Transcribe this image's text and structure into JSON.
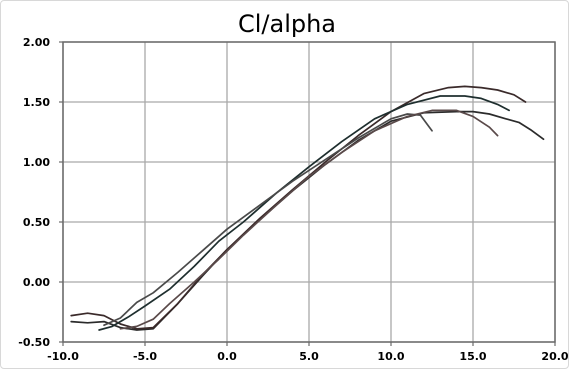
{
  "chart_data": {
    "type": "line",
    "title": "Cl/alpha",
    "xlabel": "",
    "ylabel": "",
    "xlim": [
      -10,
      20
    ],
    "ylim": [
      -0.5,
      2.0
    ],
    "x_ticks": [
      "-10.0",
      "-5.0",
      "0.0",
      "5.0",
      "10.0",
      "15.0",
      "20.0"
    ],
    "y_ticks": [
      "2.00",
      "1.50",
      "1.00",
      "0.50",
      "0.00",
      "-0.50"
    ],
    "grid": true,
    "legend": "none",
    "line_colors": [
      "#2b2b2b",
      "#3a2a2a",
      "#1e2e2e",
      "#4a4a4a",
      "#5a4a4a"
    ],
    "series": [
      {
        "x": [
          -9.5,
          -8.5,
          -7.5,
          -6.5,
          -5.5,
          -4.5,
          -3.0,
          -1.5,
          0,
          2,
          4,
          6,
          8,
          10,
          12,
          14,
          15,
          16,
          17,
          17.8,
          18.5,
          19.3
        ],
        "y": [
          -0.33,
          -0.34,
          -0.33,
          -0.38,
          -0.4,
          -0.39,
          -0.18,
          0.05,
          0.27,
          0.52,
          0.76,
          0.98,
          1.18,
          1.34,
          1.41,
          1.42,
          1.42,
          1.4,
          1.36,
          1.33,
          1.27,
          1.19
        ]
      },
      {
        "x": [
          -9.5,
          -8.5,
          -7.5,
          -6.5,
          -5.5,
          -4.5,
          -3.0,
          -1.5,
          0,
          2,
          4,
          6,
          8,
          10,
          12,
          13.5,
          14.5,
          15.5,
          16.5,
          17.5,
          18.2
        ],
        "y": [
          -0.28,
          -0.26,
          -0.28,
          -0.35,
          -0.39,
          -0.38,
          -0.18,
          0.06,
          0.27,
          0.53,
          0.77,
          1.0,
          1.22,
          1.42,
          1.57,
          1.62,
          1.63,
          1.62,
          1.6,
          1.56,
          1.5
        ]
      },
      {
        "x": [
          -7.8,
          -7.0,
          -6.0,
          -5.0,
          -3.5,
          -2.0,
          -0.5,
          1,
          3,
          5,
          7,
          9,
          11,
          13,
          14.5,
          15.5,
          16.5,
          17.2
        ],
        "y": [
          -0.4,
          -0.37,
          -0.29,
          -0.2,
          -0.06,
          0.13,
          0.34,
          0.5,
          0.74,
          0.96,
          1.17,
          1.36,
          1.48,
          1.55,
          1.55,
          1.53,
          1.48,
          1.43
        ]
      },
      {
        "x": [
          -7.5,
          -6.5,
          -5.5,
          -4.5,
          -3.0,
          -1.5,
          0,
          2,
          4,
          6,
          8,
          10,
          11,
          11.8,
          12.5
        ],
        "y": [
          -0.36,
          -0.3,
          -0.17,
          -0.09,
          0.08,
          0.26,
          0.44,
          0.64,
          0.84,
          1.02,
          1.2,
          1.36,
          1.4,
          1.39,
          1.26
        ]
      },
      {
        "x": [
          -6.5,
          -5.5,
          -4.5,
          -3.5,
          -2.0,
          -0.5,
          1,
          3,
          5,
          7,
          9,
          11,
          12.5,
          14,
          15,
          16,
          16.5
        ],
        "y": [
          -0.39,
          -0.37,
          -0.31,
          -0.18,
          0.0,
          0.19,
          0.39,
          0.64,
          0.88,
          1.08,
          1.26,
          1.38,
          1.43,
          1.43,
          1.38,
          1.29,
          1.22
        ]
      }
    ]
  }
}
